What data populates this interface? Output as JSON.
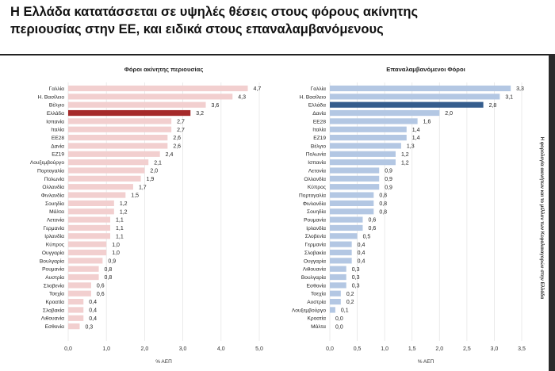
{
  "header": {
    "title_line_1": "Η Ελλάδα κατατάσσεται σε υψηλές θέσεις στους φόρους ακίνητης",
    "title_line_2": "περιουσίας στην ΕΕ, και ειδικά στους επαναλαμβανόμενους"
  },
  "side_note": "Η φορολογία ακινήτων και το μέλλον των Κεφαλαιαγορών στην Ελλάδα",
  "colors": {
    "left_bar": "#f2cfcf",
    "left_highlight": "#a52a2a",
    "right_bar": "#b3c7e3",
    "right_highlight": "#355d8d"
  },
  "chart_data": [
    {
      "type": "bar",
      "orientation": "horizontal",
      "title": "Φόροι ακίνητης περιουσίας",
      "xlabel": "% ΑΕΠ",
      "xlim": [
        0,
        5
      ],
      "xticks": [
        "0,0",
        "1,0",
        "2,0",
        "3,0",
        "4,0",
        "5,0"
      ],
      "highlight": "Ελλάδα",
      "categories": [
        "Γαλλία",
        "Η. Βασίλειο",
        "Βέλγιο",
        "Ελλάδα",
        "Ισπανία",
        "Ιταλία",
        "ΕΕ28",
        "Δανία",
        "ΕΖ19",
        "Λουξεμβούργο",
        "Πορτογαλία",
        "Πολωνία",
        "Ολλανδία",
        "Φινλανδία",
        "Σουηδία",
        "Μάλτα",
        "Λετονία",
        "Γερμανία",
        "Ιρλανδία",
        "Κύπρος",
        "Ουγγαρία",
        "Βουλγαρία",
        "Ρουμανία",
        "Αυστρία",
        "Σλοβενία",
        "Τσεχία",
        "Κροατία",
        "Σλοβακία",
        "Λιθουανία",
        "Εσθονία"
      ],
      "values": [
        4.7,
        4.3,
        3.6,
        3.2,
        2.7,
        2.7,
        2.6,
        2.6,
        2.4,
        2.1,
        2.0,
        1.9,
        1.7,
        1.5,
        1.2,
        1.2,
        1.1,
        1.1,
        1.1,
        1.0,
        1.0,
        0.9,
        0.8,
        0.8,
        0.6,
        0.6,
        0.4,
        0.4,
        0.4,
        0.3
      ],
      "labels": [
        "4,7",
        "4,3",
        "3,6",
        "3,2",
        "2,7",
        "2,7",
        "2,6",
        "2,6",
        "2,4",
        "2,1",
        "2,0",
        "1,9",
        "1,7",
        "1,5",
        "1,2",
        "1,2",
        "1,1",
        "1,1",
        "1,1",
        "1,0",
        "1,0",
        "0,9",
        "0,8",
        "0,8",
        "0,6",
        "0,6",
        "0,4",
        "0,4",
        "0,4",
        "0,3"
      ]
    },
    {
      "type": "bar",
      "orientation": "horizontal",
      "title": "Επαναλαμβανόμενοι Φόροι",
      "xlabel": "% ΑΕΠ",
      "xlim": [
        0,
        3.5
      ],
      "xticks": [
        "0,0",
        "0,5",
        "1,0",
        "1,5",
        "2,0",
        "2,5",
        "3,0",
        "3,5"
      ],
      "highlight": "Ελλάδα",
      "categories": [
        "Γαλλία",
        "Η. Βασίλειο",
        "Ελλάδα",
        "Δανία",
        "ΕΕ28",
        "Ιταλία",
        "ΕΖ19",
        "Βέλγιο",
        "Πολωνία",
        "Ισπανία",
        "Λετονία",
        "Ολλανδία",
        "Κύπρος",
        "Πορτογαλία",
        "Φινλανδία",
        "Σουηδία",
        "Ρουμανία",
        "Ιρλανδία",
        "Σλοβενία",
        "Γερμανία",
        "Σλοβακία",
        "Ουγγαρία",
        "Λιθουανία",
        "Βουλγαρία",
        "Εσθονία",
        "Τσεχία",
        "Αυστρία",
        "Λουξεμβούργο",
        "Κροατία",
        "Μάλτα"
      ],
      "values": [
        3.3,
        3.1,
        2.8,
        2.0,
        1.6,
        1.4,
        1.4,
        1.3,
        1.2,
        1.2,
        0.9,
        0.9,
        0.9,
        0.8,
        0.8,
        0.8,
        0.6,
        0.6,
        0.5,
        0.4,
        0.4,
        0.4,
        0.3,
        0.3,
        0.3,
        0.2,
        0.2,
        0.1,
        0.0,
        0.0
      ],
      "labels": [
        "3,3",
        "3,1",
        "2,8",
        "2,0",
        "1,6",
        "1,4",
        "1,4",
        "1,3",
        "1,2",
        "1,2",
        "0,9",
        "0,9",
        "0,9",
        "0,8",
        "0,8",
        "0,8",
        "0,6",
        "0,6",
        "0,5",
        "0,4",
        "0,4",
        "0,4",
        "0,3",
        "0,3",
        "0,3",
        "0,2",
        "0,2",
        "0,1",
        "0,0",
        "0,0"
      ]
    }
  ]
}
